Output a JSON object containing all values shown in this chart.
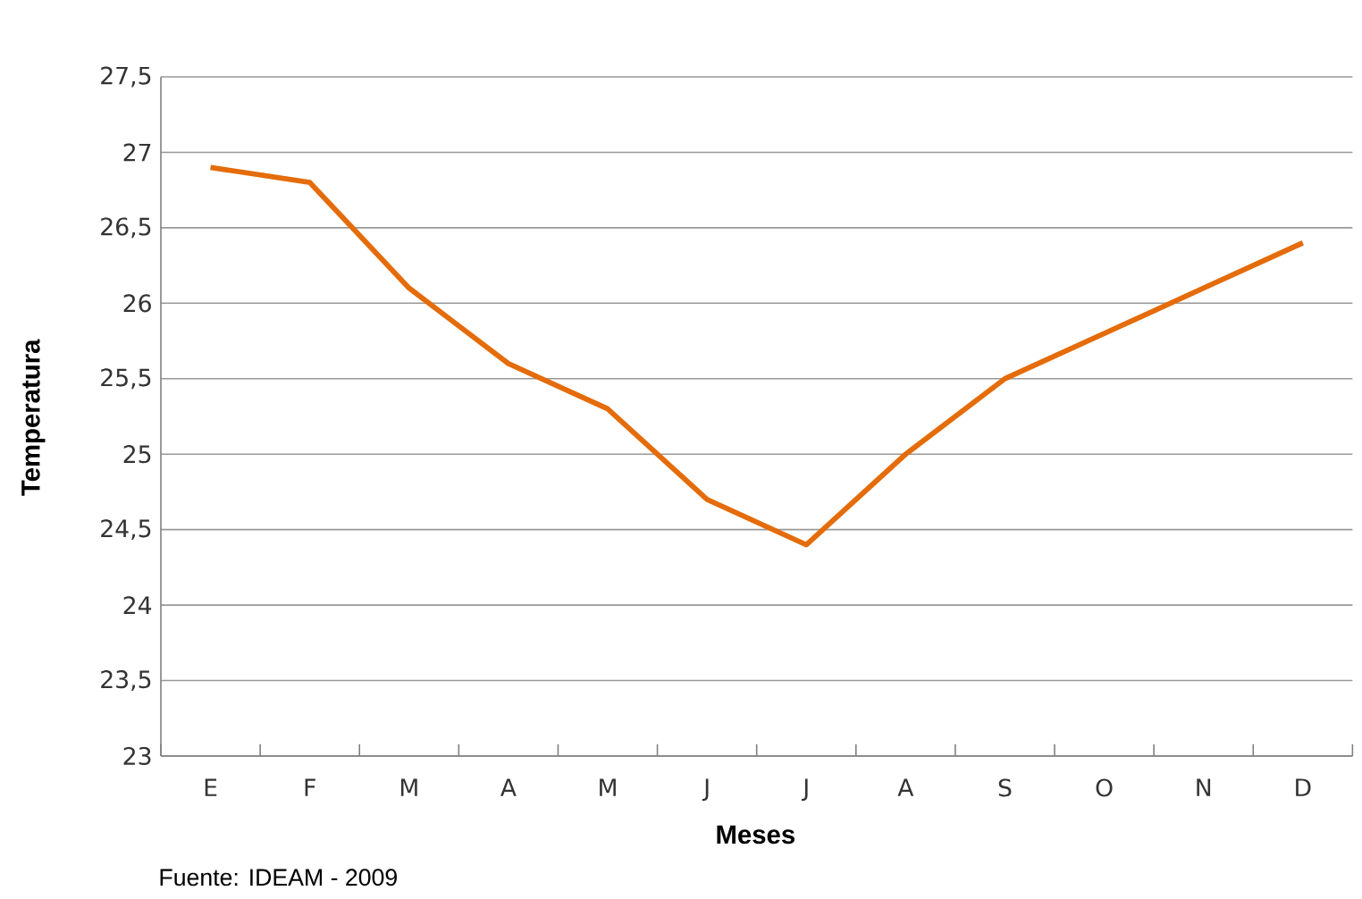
{
  "chart_data": {
    "type": "line",
    "xlabel": "Meses",
    "ylabel": "Temperatura",
    "categories": [
      "E",
      "F",
      "M",
      "A",
      "M",
      "J",
      "J",
      "A",
      "S",
      "O",
      "N",
      "D"
    ],
    "series": [
      {
        "color": "#e46c0a",
        "values": [
          26.9,
          26.8,
          26.1,
          25.6,
          25.3,
          24.7,
          24.4,
          25.0,
          25.5,
          25.8,
          26.1,
          26.4
        ]
      }
    ],
    "ylim": [
      23,
      27.5
    ],
    "yticks": [
      23,
      {
        "value": 23.5,
        "label": "23,5"
      },
      24,
      {
        "value": 24.5,
        "label": "24,5"
      },
      25,
      {
        "value": 25.5,
        "label": "25,5"
      },
      26,
      {
        "value": 26.5,
        "label": "26,5"
      },
      27,
      {
        "value": 27.5,
        "label": "27,5"
      }
    ],
    "grid": "y",
    "annotations": [
      "Fuente: IDEAM - 2009"
    ]
  }
}
